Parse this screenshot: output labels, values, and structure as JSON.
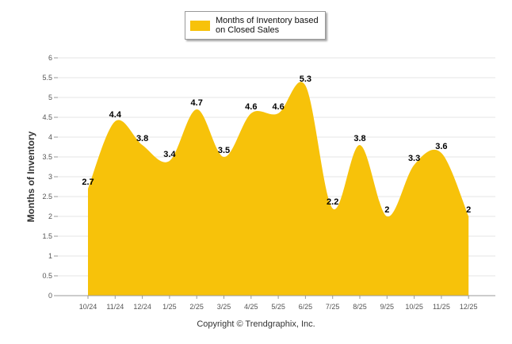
{
  "chart_data": {
    "type": "area",
    "categories": [
      "10/24",
      "11/24",
      "12/24",
      "1/25",
      "2/25",
      "3/25",
      "4/25",
      "5/25",
      "6/25",
      "7/25",
      "8/25",
      "9/25",
      "10/25",
      "11/25",
      "12/25"
    ],
    "series": [
      {
        "name": "Months of Inventory based on Closed Sales",
        "values": [
          2.7,
          4.4,
          3.8,
          3.4,
          4.7,
          3.5,
          4.6,
          4.6,
          5.3,
          2.2,
          3.8,
          2,
          3.3,
          3.6,
          2
        ],
        "color": "#f7c20a"
      }
    ],
    "ylabel": "Months of Inventory",
    "xlabel": "",
    "ylim": [
      0,
      6
    ],
    "yticks": [
      "0",
      "0.5",
      "1",
      "1.5",
      "2",
      "2.5",
      "3",
      "3.5",
      "4",
      "4.5",
      "5",
      "5.5",
      "6"
    ],
    "grid": true,
    "legend_position": "top-center"
  },
  "legend": {
    "label": "Months of Inventory based\non Closed Sales"
  },
  "credit": "Copyright © Trendgraphix, Inc."
}
